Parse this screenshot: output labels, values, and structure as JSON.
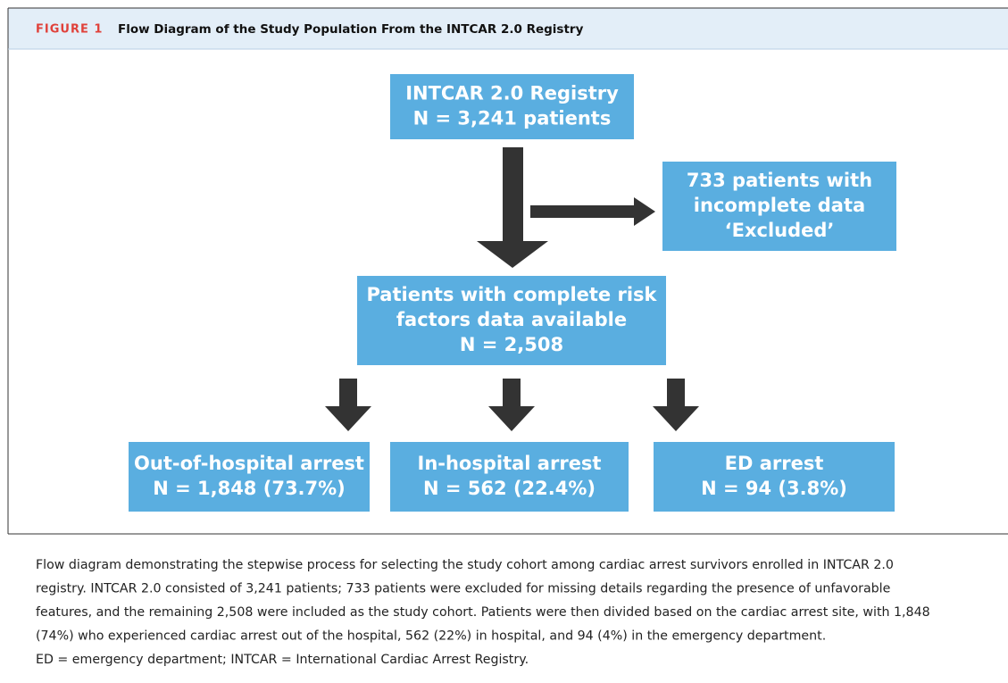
{
  "header": {
    "label": "FIGURE 1",
    "title": "Flow Diagram of the Study Population From the INTCAR 2.0 Registry"
  },
  "nodes": [
    {
      "lines": [
        "INTCAR 2.0 Registry",
        "N = 3,241 patients"
      ]
    },
    {
      "lines": [
        "733 patients with",
        "incomplete data",
        "‘Excluded’"
      ]
    },
    {
      "lines": [
        "Patients with complete risk",
        "factors data available",
        "N = 2,508"
      ]
    },
    {
      "lines": [
        "Out-of-hospital arrest",
        "N = 1,848 (73.7%)"
      ]
    },
    {
      "lines": [
        "In-hospital arrest",
        "N = 562 (22.4%)"
      ]
    },
    {
      "lines": [
        "ED arrest",
        "N = 94 (3.8%)"
      ]
    }
  ],
  "caption": {
    "lines": [
      "Flow diagram demonstrating the stepwise process for selecting the study cohort among cardiac arrest survivors enrolled in INTCAR 2.0",
      "registry. INTCAR 2.0 consisted of 3,241 patients; 733 patients were excluded for missing details regarding the presence of unfavorable",
      "features, and the remaining 2,508 were included as the study cohort. Patients were then divided based on the cardiac arrest site, with 1,848",
      "(74%) who experienced cardiac arrest out of the hospital, 562 (22%) in hospital, and 94 (4%) in the emergency department.",
      "ED = emergency department; INTCAR = International Cardiac Arrest Registry."
    ]
  }
}
